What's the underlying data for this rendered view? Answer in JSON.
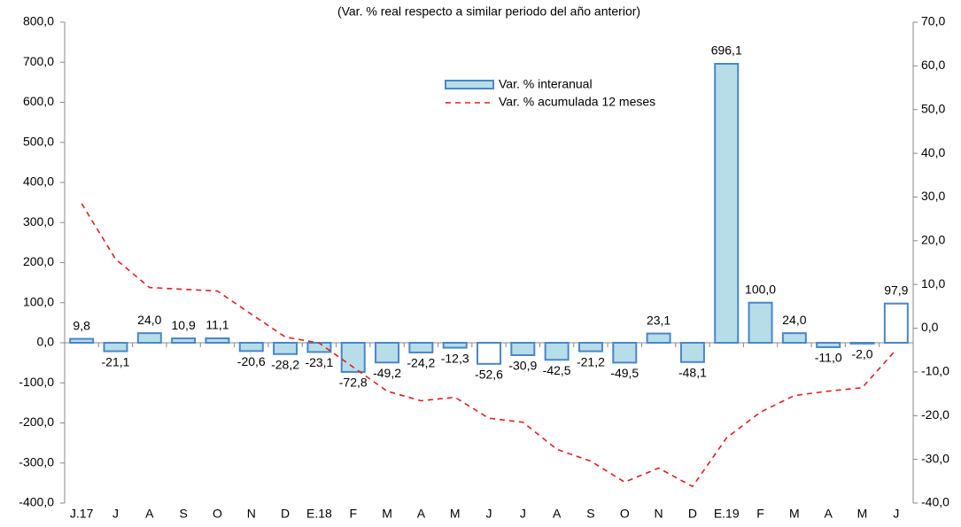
{
  "chart_data": {
    "type": "bar_line",
    "title": "(Var. % real respecto a similar periodo del año anterior)",
    "categories": [
      "J.17",
      "J",
      "A",
      "S",
      "O",
      "N",
      "D",
      "E.18",
      "F",
      "M",
      "A",
      "M",
      "J",
      "J",
      "A",
      "S",
      "O",
      "N",
      "D",
      "E.19",
      "F",
      "M",
      "A",
      "M",
      "J"
    ],
    "series": [
      {
        "name": "Var. % interanual",
        "type": "bar",
        "color": "#4a86c8",
        "fills": [
          "#b7dde8",
          "#b7dde8",
          "#b7dde8",
          "#b7dde8",
          "#b7dde8",
          "#b7dde8",
          "#b7dde8",
          "#b7dde8",
          "#b7dde8",
          "#b7dde8",
          "#b7dde8",
          "#b7dde8",
          "#ffffff",
          "#b7dde8",
          "#b7dde8",
          "#b7dde8",
          "#b7dde8",
          "#b7dde8",
          "#b7dde8",
          "#b7dde8",
          "#b7dde8",
          "#b7dde8",
          "#b7dde8",
          "#b7dde8",
          "#ffffff"
        ],
        "values": [
          9.8,
          -21.1,
          24.0,
          10.9,
          11.1,
          -20.6,
          -28.2,
          -23.1,
          -72.8,
          -49.2,
          -24.2,
          -12.3,
          -52.6,
          -30.9,
          -42.5,
          -21.2,
          -49.5,
          23.1,
          -48.1,
          696.1,
          100.0,
          24.0,
          -11.0,
          -2.0,
          97.9
        ],
        "value_labels": [
          "9,8",
          "-21,1",
          "24,0",
          "10,9",
          "11,1",
          "-20,6",
          "-28,2",
          "-23,1",
          "-72,8",
          "-49,2",
          "-24,2",
          "-12,3",
          "-52,6",
          "-30,9",
          "-42,5",
          "-21,2",
          "-49,5",
          "23,1",
          "-48,1",
          "696,1",
          "100,0",
          "24,0",
          "-11,0",
          "-2,0",
          "97,9"
        ]
      },
      {
        "name": "Var. % acumulada 12 meses",
        "type": "line",
        "axis": "y2",
        "color": "#e02020",
        "dashed": true,
        "values": [
          28.5,
          15.8,
          9.3,
          8.9,
          8.5,
          3.2,
          -2.0,
          -3.4,
          -8.9,
          -14.4,
          -16.6,
          -15.8,
          -20.6,
          -21.5,
          -27.7,
          -30.4,
          -35.2,
          -32.0,
          -36.2,
          -25.1,
          -19.2,
          -15.4,
          -14.4,
          -13.6,
          -4.9
        ]
      }
    ],
    "ylim": [
      -400,
      800
    ],
    "yticks": [
      {
        "value": -400,
        "label": "-400,0"
      },
      {
        "value": -300,
        "label": "-300,0"
      },
      {
        "value": -200,
        "label": "-200,0"
      },
      {
        "value": -100,
        "label": "-100,0"
      },
      {
        "value": 0,
        "label": "0,0"
      },
      {
        "value": 100,
        "label": "100,0"
      },
      {
        "value": 200,
        "label": "200,0"
      },
      {
        "value": 300,
        "label": "300,0"
      },
      {
        "value": 400,
        "label": "400,0"
      },
      {
        "value": 500,
        "label": "500,0"
      },
      {
        "value": 600,
        "label": "600,0"
      },
      {
        "value": 700,
        "label": "700,0"
      },
      {
        "value": 800,
        "label": "800,0"
      }
    ],
    "y2lim": [
      -40,
      70
    ],
    "y2ticks": [
      {
        "value": -40,
        "label": "-40,0"
      },
      {
        "value": -30,
        "label": "-30,0"
      },
      {
        "value": -20,
        "label": "-20,0"
      },
      {
        "value": -10,
        "label": "-10,0"
      },
      {
        "value": 0,
        "label": "0,0"
      },
      {
        "value": 10,
        "label": "10,0"
      },
      {
        "value": 20,
        "label": "20,0"
      },
      {
        "value": 30,
        "label": "30,0"
      },
      {
        "value": 40,
        "label": "40,0"
      },
      {
        "value": 50,
        "label": "50,0"
      },
      {
        "value": 60,
        "label": "60,0"
      },
      {
        "value": 70,
        "label": "70,0"
      }
    ],
    "grid": false
  }
}
